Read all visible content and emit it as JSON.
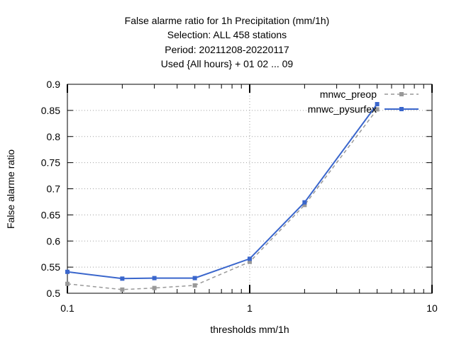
{
  "chart_data": {
    "type": "line",
    "title_lines": [
      "False alarme ratio  for 1h Precipitation (mm/1h)",
      "Selection: ALL    458 stations",
      "Period: 20211208-20220117",
      "Used {All hours} + 01 02 ... 09"
    ],
    "xlabel": "thresholds mm/1h",
    "ylabel": "False alarme ratio",
    "x_scale": "log",
    "xlim": [
      0.1,
      10
    ],
    "ylim": [
      0.5,
      0.9
    ],
    "x_ticks": [
      0.1,
      1,
      10
    ],
    "x_tick_labels": [
      "0.1",
      "1",
      "10"
    ],
    "y_ticks": [
      0.5,
      0.55,
      0.6,
      0.65,
      0.7,
      0.75,
      0.8,
      0.85,
      0.9
    ],
    "y_tick_labels": [
      "0.5",
      "0.55",
      "0.6",
      "0.65",
      "0.7",
      "0.75",
      "0.8",
      "0.85",
      "0.9"
    ],
    "grid": true,
    "legend_position": "top-right",
    "series": [
      {
        "name": "mnwc_preop",
        "color": "#999999",
        "style": "dashed",
        "x": [
          0.1,
          0.2,
          0.3,
          0.5,
          1,
          2,
          5
        ],
        "y": [
          0.518,
          0.507,
          0.51,
          0.515,
          0.56,
          0.669,
          0.852
        ]
      },
      {
        "name": "mnwc_pysurfex",
        "color": "#3a66cc",
        "style": "solid",
        "x": [
          0.1,
          0.2,
          0.3,
          0.5,
          1,
          2,
          5
        ],
        "y": [
          0.541,
          0.528,
          0.529,
          0.529,
          0.566,
          0.674,
          0.862
        ]
      }
    ]
  }
}
